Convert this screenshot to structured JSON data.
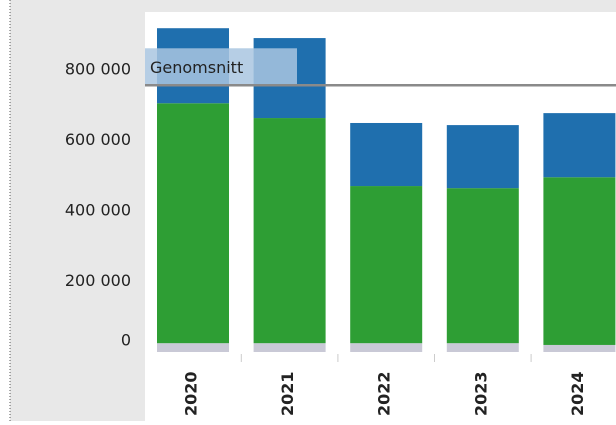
{
  "chart_data": {
    "type": "stacked_bar",
    "categories": [
      "2020",
      "2021",
      "2022",
      "2023",
      "2024"
    ],
    "series": [
      {
        "color": "#c9c9d6",
        "values": [
          25000,
          25000,
          25000,
          25000,
          20000
        ]
      },
      {
        "color": "#2e9e34",
        "values": [
          681000,
          639000,
          446000,
          440000,
          476000
        ]
      },
      {
        "color": "#1f6fae",
        "values": [
          213000,
          227000,
          179000,
          179000,
          182000
        ]
      }
    ],
    "ylim": [
      0,
      965000
    ],
    "yticks": [
      {
        "value": 0,
        "label": "0"
      },
      {
        "value": 200000,
        "label": "200 000"
      },
      {
        "value": 400000,
        "label": "400 000"
      },
      {
        "value": 600000,
        "label": "600 000"
      },
      {
        "value": 800000,
        "label": "800 000"
      }
    ],
    "reference_line": {
      "label": "Genomsnitt",
      "value": 757000,
      "color": "#8a8a8a"
    }
  }
}
